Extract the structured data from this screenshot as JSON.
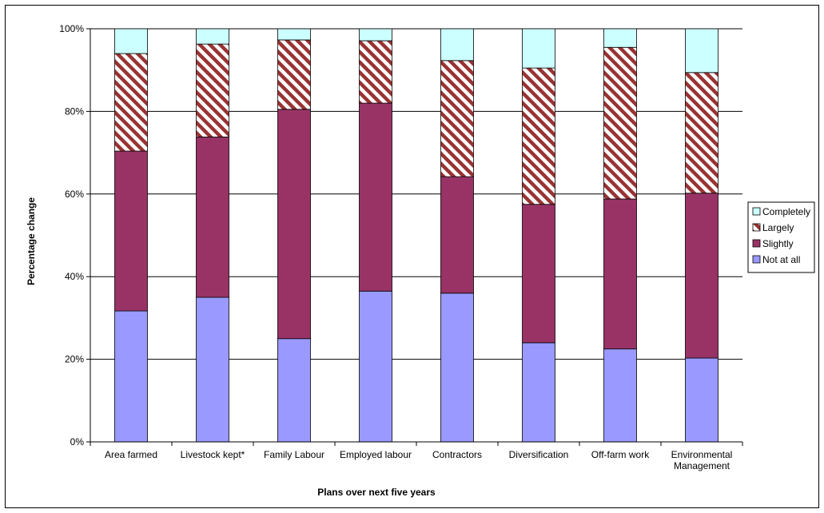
{
  "chart_data": {
    "type": "bar",
    "stacked": true,
    "percent_stacked": true,
    "title": "",
    "xlabel": "Plans over next five years",
    "ylabel": "Percentage change",
    "ylim": [
      0,
      100
    ],
    "yticks": [
      "0%",
      "20%",
      "40%",
      "60%",
      "80%",
      "100%"
    ],
    "grid": true,
    "legend_position": "right",
    "categories": [
      "Area farmed",
      "Livestock kept*",
      "Family Labour",
      "Employed labour",
      "Contractors",
      "Diversification",
      "Off-farm work",
      "Environmental Management"
    ],
    "series": [
      {
        "name": "Not at all",
        "color": "#9999ff",
        "pattern": "solid",
        "values": [
          31.7,
          35.0,
          25.0,
          36.5,
          36.0,
          24.0,
          22.5,
          20.3
        ]
      },
      {
        "name": "Slightly",
        "color": "#993366",
        "pattern": "solid",
        "values": [
          38.7,
          38.8,
          55.5,
          45.5,
          28.2,
          33.5,
          36.3,
          39.9
        ]
      },
      {
        "name": "Largely",
        "color": "#993333",
        "pattern": "diagonal-stripes",
        "values": [
          23.6,
          22.5,
          16.8,
          15.1,
          28.1,
          33.0,
          36.7,
          29.2
        ]
      },
      {
        "name": "Completely",
        "color": "#ccffff",
        "pattern": "solid",
        "values": [
          6.0,
          3.7,
          2.7,
          2.9,
          7.7,
          9.5,
          4.5,
          10.6
        ]
      }
    ]
  }
}
